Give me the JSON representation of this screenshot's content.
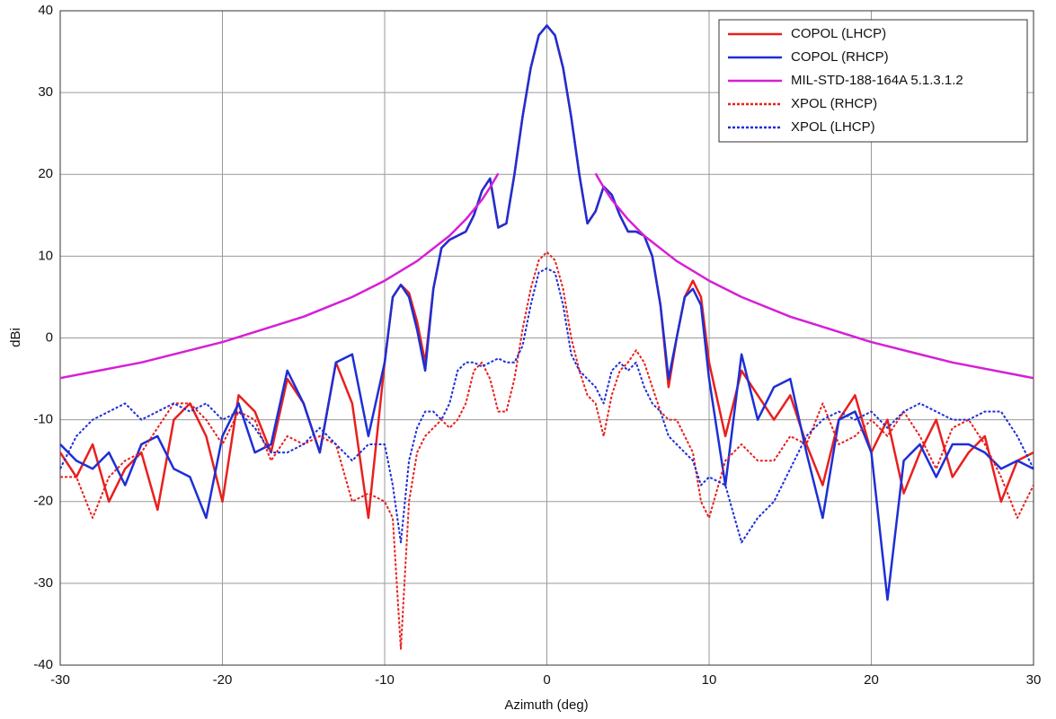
{
  "chart_data": {
    "type": "line",
    "xlabel": "Azimuth (deg)",
    "ylabel": "dBi",
    "xlim": [
      -30,
      30
    ],
    "ylim": [
      -40,
      40
    ],
    "xticks": [
      -30,
      -20,
      -10,
      0,
      10,
      20,
      30
    ],
    "yticks": [
      -40,
      -30,
      -20,
      -10,
      0,
      10,
      20,
      30,
      40
    ],
    "grid": true,
    "legend": "upper right",
    "x": [
      -30,
      -29,
      -28,
      -27,
      -26,
      -25,
      -24,
      -23,
      -22,
      -21,
      -20,
      -19,
      -18,
      -17,
      -16,
      -15,
      -14,
      -13,
      -12,
      -11,
      -10,
      -9.5,
      -9,
      -8.5,
      -8,
      -7.5,
      -7,
      -6.5,
      -6,
      -5.5,
      -5,
      -4.5,
      -4,
      -3.5,
      -3,
      -2.5,
      -2,
      -1.5,
      -1,
      -0.5,
      0,
      0.5,
      1,
      1.5,
      2,
      2.5,
      3,
      3.5,
      4,
      4.5,
      5,
      5.5,
      6,
      6.5,
      7,
      7.5,
      8,
      8.5,
      9,
      9.5,
      10,
      11,
      12,
      13,
      14,
      15,
      16,
      17,
      18,
      19,
      20,
      21,
      22,
      23,
      24,
      25,
      26,
      27,
      28,
      29,
      30
    ],
    "series": [
      {
        "name": "COPOL (LHCP)",
        "color": "#e8201e",
        "style": "solid",
        "values": [
          -14,
          -17,
          -13,
          -20,
          -16,
          -14,
          -21,
          -10,
          -8,
          -12,
          -20,
          -7,
          -9,
          -14,
          -5,
          -8,
          -14,
          -3,
          -8,
          -22,
          -3,
          5,
          6.5,
          5.5,
          2,
          -3,
          6,
          11,
          12,
          12.5,
          13,
          15,
          18,
          19.5,
          13.5,
          14,
          20,
          27,
          33,
          37,
          38.2,
          37,
          33,
          27,
          20,
          14,
          15.5,
          18.5,
          17.5,
          15,
          13,
          13,
          12.5,
          10,
          4,
          -6,
          0,
          5,
          7,
          5,
          -3,
          -12,
          -4,
          -7,
          -10,
          -7,
          -13,
          -18,
          -10,
          -7,
          -14,
          -10,
          -19,
          -14,
          -10,
          -17,
          -14,
          -12,
          -20,
          -15,
          -14
        ]
      },
      {
        "name": "COPOL (RHCP)",
        "color": "#1d2fd6",
        "style": "solid",
        "values": [
          -13,
          -15,
          -16,
          -14,
          -18,
          -13,
          -12,
          -16,
          -17,
          -22,
          -12,
          -8,
          -14,
          -13,
          -4,
          -8,
          -14,
          -3,
          -2,
          -12,
          -3,
          5,
          6.5,
          5,
          1,
          -4,
          6,
          11,
          12,
          12.5,
          13,
          15,
          18,
          19.5,
          13.5,
          14,
          20,
          27,
          33,
          37,
          38.2,
          37,
          33,
          27,
          20,
          14,
          15.5,
          18.5,
          17.5,
          15,
          13,
          13,
          12.5,
          10,
          4,
          -5,
          0,
          5,
          6,
          4,
          -5,
          -18,
          -2,
          -10,
          -6,
          -5,
          -14,
          -22,
          -10,
          -9,
          -14,
          -32,
          -15,
          -13,
          -17,
          -13,
          -13,
          -14,
          -16,
          -15,
          -16
        ]
      },
      {
        "name": "MIL-STD-188-164A 5.1.3.1.2",
        "color": "#d61fd6",
        "style": "solid",
        "x": [
          -30,
          -25,
          -20,
          -15,
          -12,
          -10,
          -8,
          -6,
          -5,
          -4,
          -3.5,
          -3,
          0,
          3,
          3.5,
          4,
          5,
          6,
          8,
          10,
          12,
          15,
          20,
          25,
          30
        ],
        "values": [
          -4.9,
          -3,
          -0.5,
          2.6,
          5,
          7,
          9.4,
          12.5,
          14.5,
          16.9,
          18.4,
          20.1,
          null,
          20.1,
          18.4,
          16.9,
          14.5,
          12.5,
          9.4,
          7,
          5,
          2.6,
          -0.5,
          -3,
          -4.9
        ]
      },
      {
        "name": "XPOL (RHCP)",
        "color": "#e8201e",
        "style": "dashed",
        "values": [
          -17,
          -17,
          -22,
          -17,
          -15,
          -14,
          -11,
          -8,
          -8,
          -10,
          -13,
          -9,
          -10,
          -15,
          -12,
          -13,
          -12,
          -13,
          -20,
          -19,
          -20,
          -22,
          -38,
          -20,
          -14,
          -12,
          -11,
          -10,
          -11,
          -10,
          -8,
          -4,
          -3,
          -5,
          -9,
          -9,
          -5,
          1,
          6,
          9.5,
          10.5,
          9.5,
          6,
          0,
          -4,
          -7,
          -8,
          -12,
          -7,
          -4,
          -3,
          -1.5,
          -3,
          -6,
          -9,
          -10,
          -10,
          -12,
          -14,
          -20,
          -22,
          -15,
          -13,
          -15,
          -15,
          -12,
          -13,
          -8,
          -13,
          -12,
          -10,
          -12,
          -9,
          -12,
          -16,
          -11,
          -10,
          -13,
          -17,
          -22,
          -18
        ]
      },
      {
        "name": "XPOL (LHCP)",
        "color": "#1d2fd6",
        "style": "dashed",
        "values": [
          -16,
          -12,
          -10,
          -9,
          -8,
          -10,
          -9,
          -8,
          -9,
          -8,
          -10,
          -9,
          -11,
          -14,
          -14,
          -13,
          -11,
          -13,
          -15,
          -13,
          -13,
          -18,
          -25,
          -15,
          -11,
          -9,
          -9,
          -10,
          -8,
          -4,
          -3,
          -3,
          -3.5,
          -3,
          -2.5,
          -3,
          -3,
          -1,
          4,
          8,
          8.5,
          8,
          4,
          -2,
          -4,
          -5,
          -6,
          -8,
          -4,
          -3,
          -4,
          -3,
          -6,
          -8,
          -9,
          -12,
          -13,
          -14,
          -15,
          -18,
          -17,
          -18,
          -25,
          -22,
          -20,
          -16,
          -12,
          -10,
          -9,
          -10,
          -9,
          -11,
          -9,
          -8,
          -9,
          -10,
          -10,
          -9,
          -9,
          -12,
          -16
        ]
      }
    ]
  }
}
